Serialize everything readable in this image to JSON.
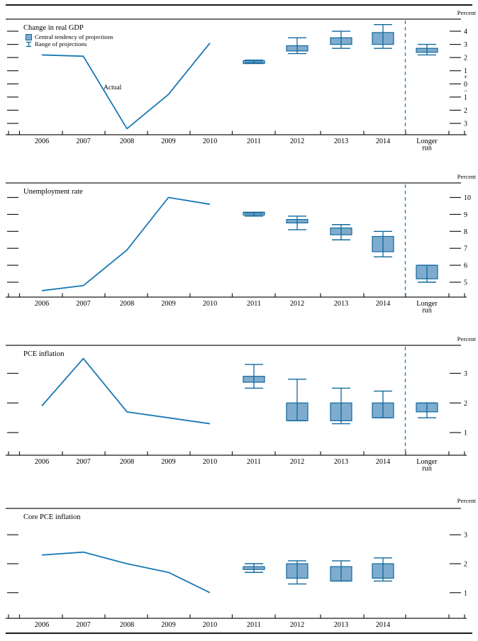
{
  "page": {
    "percent_label": "Percent",
    "actual_label": "Actual",
    "legend": {
      "central_tendency": "Central tendency of projections",
      "range": "Range of projections"
    }
  },
  "colors": {
    "actual_line": "#1878B4",
    "box_fill": "#7FACCE",
    "box_border": "#10689E",
    "divider": "#2E86B5",
    "axis": "#1a1a1a"
  },
  "x_years": [
    "2006",
    "2007",
    "2008",
    "2009",
    "2010",
    "2011",
    "2012",
    "2013",
    "2014"
  ],
  "longer_run_label": "Longer run",
  "chart_data": [
    {
      "type": "line+box",
      "title": "Change in real GDP",
      "unit": "Percent",
      "actual_x": [
        "2006",
        "2007",
        "2008",
        "2009",
        "2010"
      ],
      "actual_values": [
        2.2,
        2.1,
        -3.4,
        -0.8,
        3.1
      ],
      "projection_years": [
        "2011",
        "2012",
        "2013",
        "2014",
        "Longer run"
      ],
      "central_tendency": [
        [
          1.6,
          1.7
        ],
        [
          2.5,
          2.9
        ],
        [
          3.0,
          3.5
        ],
        [
          3.0,
          3.9
        ],
        [
          2.4,
          2.7
        ]
      ],
      "range": [
        [
          1.6,
          1.8
        ],
        [
          2.3,
          3.5
        ],
        [
          2.7,
          4.0
        ],
        [
          2.7,
          4.5
        ],
        [
          2.2,
          3.0
        ]
      ],
      "ylim": [
        -3.6,
        4.6
      ],
      "yticks": [
        {
          "label": "4",
          "value": 4
        },
        {
          "label": "3",
          "value": 3
        },
        {
          "label": "2",
          "value": 2
        },
        {
          "label": "1",
          "value": 1
        },
        {
          "label": "+",
          "value": 0.55,
          "dash": false
        },
        {
          "label": "0",
          "value": 0
        },
        {
          "label": "−",
          "value": -0.5,
          "dash": false
        },
        {
          "label": "1",
          "value": -1
        },
        {
          "label": "2",
          "value": -2
        },
        {
          "label": "3",
          "value": -3
        }
      ],
      "has_longer_run": true,
      "show_legend": true,
      "actual_annotation": "Actual"
    },
    {
      "type": "line+box",
      "title": "Unemployment rate",
      "unit": "Percent",
      "actual_x": [
        "2006",
        "2007",
        "2008",
        "2009",
        "2010"
      ],
      "actual_values": [
        4.5,
        4.8,
        6.9,
        10.0,
        9.6
      ],
      "projection_years": [
        "2011",
        "2012",
        "2013",
        "2014",
        "Longer run"
      ],
      "central_tendency": [
        [
          9.0,
          9.1
        ],
        [
          8.5,
          8.7
        ],
        [
          7.8,
          8.2
        ],
        [
          6.8,
          7.7
        ],
        [
          5.2,
          6.0
        ]
      ],
      "range": [
        [
          8.9,
          9.1
        ],
        [
          8.1,
          8.9
        ],
        [
          7.5,
          8.4
        ],
        [
          6.5,
          8.0
        ],
        [
          5.0,
          6.0
        ]
      ],
      "ylim": [
        4.2,
        10.6
      ],
      "yticks": [
        {
          "label": "10",
          "value": 10
        },
        {
          "label": "9",
          "value": 9
        },
        {
          "label": "8",
          "value": 8
        },
        {
          "label": "7",
          "value": 7
        },
        {
          "label": "6",
          "value": 6
        },
        {
          "label": "5",
          "value": 5
        }
      ],
      "has_longer_run": true,
      "show_legend": false
    },
    {
      "type": "line+box",
      "title": "PCE inflation",
      "unit": "Percent",
      "actual_x": [
        "2006",
        "2007",
        "2008",
        "2009",
        "2010"
      ],
      "actual_values": [
        1.9,
        3.5,
        1.7,
        1.5,
        1.3
      ],
      "projection_years": [
        "2011",
        "2012",
        "2013",
        "2014",
        "Longer run"
      ],
      "central_tendency": [
        [
          2.7,
          2.9
        ],
        [
          1.4,
          2.0
        ],
        [
          1.4,
          2.0
        ],
        [
          1.5,
          2.0
        ],
        [
          1.7,
          2.0
        ]
      ],
      "range": [
        [
          2.5,
          3.3
        ],
        [
          1.4,
          2.8
        ],
        [
          1.3,
          2.5
        ],
        [
          1.5,
          2.4
        ],
        [
          1.5,
          2.0
        ]
      ],
      "ylim": [
        0.6,
        3.8
      ],
      "yticks": [
        {
          "label": "3",
          "value": 3
        },
        {
          "label": "2",
          "value": 2
        },
        {
          "label": "1",
          "value": 1
        }
      ],
      "has_longer_run": true,
      "show_legend": false
    },
    {
      "type": "line+box",
      "title": "Core PCE inflation",
      "unit": "Percent",
      "actual_x": [
        "2006",
        "2007",
        "2008",
        "2009",
        "2010"
      ],
      "actual_values": [
        2.3,
        2.4,
        2.0,
        1.7,
        1.0
      ],
      "projection_years": [
        "2011",
        "2012",
        "2013",
        "2014"
      ],
      "central_tendency": [
        [
          1.8,
          1.9
        ],
        [
          1.5,
          2.0
        ],
        [
          1.4,
          1.9
        ],
        [
          1.5,
          2.0
        ]
      ],
      "range": [
        [
          1.7,
          2.0
        ],
        [
          1.3,
          2.1
        ],
        [
          1.4,
          2.1
        ],
        [
          1.4,
          2.2
        ]
      ],
      "ylim": [
        0.6,
        3.8
      ],
      "yticks": [
        {
          "label": "3",
          "value": 3
        },
        {
          "label": "2",
          "value": 2
        },
        {
          "label": "1",
          "value": 1
        }
      ],
      "has_longer_run": false,
      "show_legend": false
    }
  ]
}
